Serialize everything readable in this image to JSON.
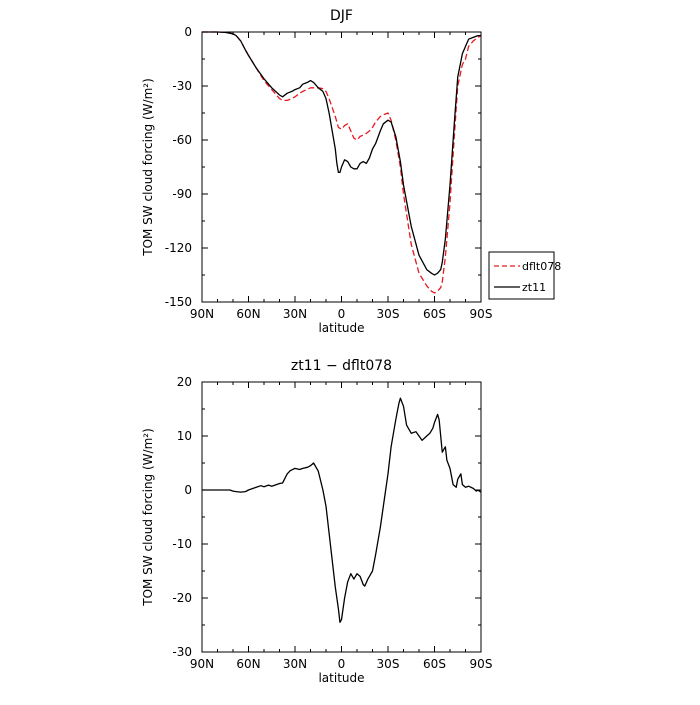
{
  "chart_data": [
    {
      "type": "line",
      "title": "DJF",
      "xlabel": "latitude",
      "ylabel": "TOM SW cloud forcing (W/m²)",
      "xlim": [
        90,
        -90
      ],
      "ylim": [
        -150,
        0
      ],
      "xticks": [
        90,
        60,
        30,
        0,
        -30,
        -60,
        -90
      ],
      "xtick_labels": [
        "90N",
        "60N",
        "30N",
        "0",
        "30S",
        "60S",
        "90S"
      ],
      "yticks": [
        0,
        -30,
        -60,
        -90,
        -120,
        -150
      ],
      "ytick_labels": [
        "0",
        "-30",
        "-60",
        "-90",
        "-120",
        "-150"
      ],
      "legend_position": "right",
      "series": [
        {
          "name": "dflt078",
          "color": "#e8191f",
          "dash": "dashed",
          "x": [
            90,
            80,
            75,
            70,
            68,
            65,
            62,
            60,
            55,
            50,
            45,
            40,
            38,
            35,
            32,
            30,
            27,
            25,
            20,
            15,
            12,
            10,
            8,
            6,
            4,
            3,
            2,
            0,
            -2,
            -4,
            -6,
            -8,
            -10,
            -12,
            -15,
            -18,
            -20,
            -22,
            -25,
            -27,
            -30,
            -32,
            -35,
            -38,
            -40,
            -45,
            -50,
            -55,
            -58,
            -60,
            -62,
            -64,
            -65,
            -67,
            -70,
            -73,
            -75,
            -78,
            -80,
            -82,
            -85,
            -88,
            -90
          ],
          "y": [
            0,
            0,
            -0.2,
            -1,
            -2,
            -5,
            -10,
            -13,
            -20,
            -27,
            -32,
            -37,
            -38,
            -38,
            -37,
            -36,
            -34,
            -33,
            -31,
            -31,
            -31.5,
            -33,
            -37,
            -42,
            -47,
            -50,
            -53,
            -54,
            -52,
            -51,
            -55,
            -59,
            -60,
            -58,
            -57,
            -55,
            -53,
            -50,
            -47,
            -46,
            -45,
            -49,
            -60,
            -75,
            -90,
            -118,
            -134,
            -141,
            -144,
            -145,
            -144,
            -142,
            -139,
            -125,
            -95,
            -55,
            -30,
            -18,
            -15,
            -8,
            -5,
            -3,
            -2
          ]
        },
        {
          "name": "zt11",
          "color": "#000000",
          "dash": "solid",
          "x": [
            90,
            80,
            75,
            70,
            68,
            65,
            62,
            60,
            55,
            50,
            45,
            40,
            38,
            35,
            32,
            30,
            27,
            25,
            22,
            20,
            18,
            15,
            12,
            10,
            8,
            6,
            4,
            3,
            2,
            1,
            0,
            -2,
            -4,
            -6,
            -8,
            -10,
            -12,
            -14,
            -16,
            -18,
            -20,
            -22,
            -25,
            -27,
            -30,
            -32,
            -35,
            -38,
            -40,
            -45,
            -50,
            -55,
            -58,
            -60,
            -62,
            -64,
            -65,
            -67,
            -70,
            -73,
            -75,
            -78,
            -80,
            -82,
            -85,
            -88,
            -90
          ],
          "y": [
            0,
            0,
            -0.2,
            -1,
            -2,
            -5,
            -10,
            -13,
            -20,
            -26,
            -31,
            -35,
            -36,
            -34,
            -33,
            -32,
            -31,
            -29,
            -28,
            -27,
            -28,
            -31,
            -33,
            -37,
            -45,
            -55,
            -65,
            -73,
            -78,
            -78,
            -75,
            -71,
            -72,
            -75,
            -76,
            -76,
            -73,
            -72,
            -73,
            -70,
            -65,
            -62,
            -55,
            -51,
            -49,
            -50,
            -58,
            -72,
            -85,
            -108,
            -124,
            -132,
            -134,
            -135,
            -134,
            -132,
            -128,
            -115,
            -85,
            -48,
            -25,
            -12,
            -8,
            -4,
            -3,
            -2,
            -2
          ]
        }
      ]
    },
    {
      "type": "line",
      "title": "zt11 − dflt078",
      "xlabel": "latitude",
      "ylabel": "TOM SW cloud forcing (W/m²)",
      "xlim": [
        90,
        -90
      ],
      "ylim": [
        -30,
        20
      ],
      "xticks": [
        90,
        60,
        30,
        0,
        -30,
        -60,
        -90
      ],
      "xtick_labels": [
        "90N",
        "60N",
        "30N",
        "0",
        "30S",
        "60S",
        "90S"
      ],
      "yticks": [
        20,
        10,
        0,
        -10,
        -20,
        -30
      ],
      "ytick_labels": [
        "20",
        "10",
        "0",
        "-10",
        "-20",
        "-30"
      ],
      "series": [
        {
          "color": "#000000",
          "dash": "solid",
          "x": [
            90,
            80,
            72,
            70,
            68,
            65,
            62,
            60,
            55,
            52,
            50,
            47,
            45,
            42,
            40,
            38,
            35,
            33,
            30,
            27,
            25,
            22,
            20,
            18,
            16,
            15,
            12,
            10,
            8,
            6,
            4,
            2,
            1,
            0,
            -2,
            -4,
            -6,
            -8,
            -10,
            -12,
            -14,
            -15,
            -17,
            -18,
            -20,
            -22,
            -25,
            -28,
            -30,
            -32,
            -35,
            -37,
            -38,
            -40,
            -42,
            -45,
            -48,
            -50,
            -52,
            -55,
            -57,
            -59,
            -60,
            -62,
            -63,
            -64,
            -65,
            -67,
            -68,
            -70,
            -72,
            -74,
            -75,
            -77,
            -78,
            -80,
            -82,
            -85,
            -87,
            -88,
            -90
          ],
          "y": [
            0,
            0,
            0,
            -0.2,
            -0.3,
            -0.4,
            -0.3,
            0,
            0.5,
            0.8,
            0.6,
            0.9,
            0.7,
            1.0,
            1.2,
            1.3,
            3.0,
            3.6,
            4.0,
            3.8,
            4.0,
            4.2,
            4.5,
            5.0,
            4.0,
            3.5,
            0,
            -3,
            -8,
            -13,
            -18,
            -22,
            -24.5,
            -24,
            -20,
            -17,
            -15.5,
            -16.5,
            -15.5,
            -16,
            -17.5,
            -17.8,
            -16.5,
            -16,
            -15,
            -12,
            -7,
            -1,
            3,
            8,
            13,
            16,
            17,
            15.5,
            12,
            10.5,
            10.8,
            10.0,
            9.2,
            10.0,
            10.5,
            11.5,
            12.5,
            14,
            13,
            10,
            7,
            8,
            5.5,
            4,
            1,
            0.5,
            2,
            3,
            1,
            0.5,
            0.7,
            0.3,
            -0.2,
            0,
            -0.4
          ]
        }
      ]
    }
  ]
}
